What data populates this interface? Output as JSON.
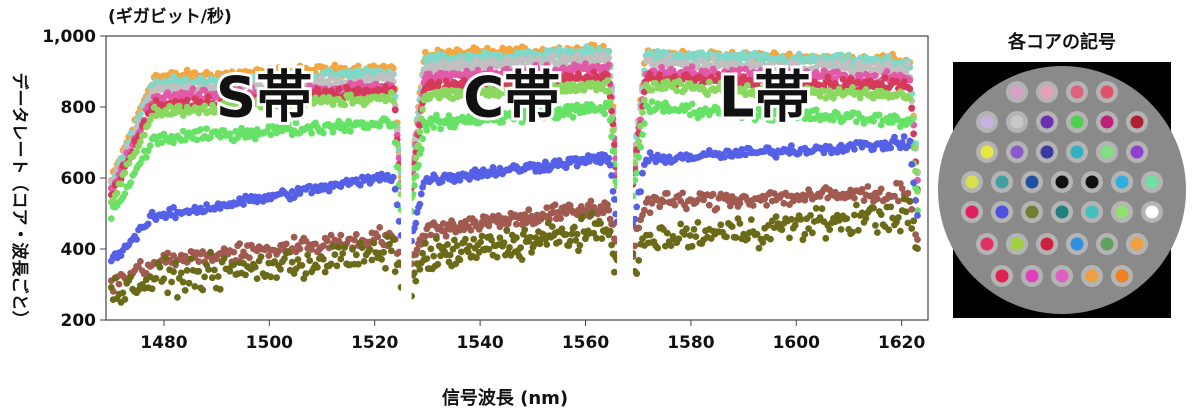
{
  "chart_data": {
    "type": "scatter",
    "unit_label": "(ギガビット/秒)",
    "ylabel": "データレート（コア・波長ごと）",
    "xlabel": "信号波長 (nm)",
    "xlim": [
      1469,
      1625
    ],
    "ylim": [
      200,
      1000
    ],
    "x_ticks": [
      1480,
      1500,
      1520,
      1540,
      1560,
      1580,
      1600,
      1620
    ],
    "y_ticks": [
      200,
      400,
      600,
      800,
      1000
    ],
    "y_tick_labels": [
      "200",
      "400",
      "600",
      "800",
      "1,000"
    ],
    "gaps": [
      [
        1525,
        1527
      ],
      [
        1566,
        1569
      ]
    ],
    "bands": [
      {
        "label": "S帯",
        "x": 1499,
        "y": 830
      },
      {
        "label": "C帯",
        "x": 1546,
        "y": 830
      },
      {
        "label": "L帯",
        "x": 1594,
        "y": 830
      }
    ],
    "series": [
      {
        "color": "#f4a640",
        "bands": [
          [
            880,
            910
          ],
          [
            945,
            960
          ],
          [
            950,
            930
          ]
        ],
        "spread": 22
      },
      {
        "color": "#7fd8c8",
        "bands": [
          [
            860,
            900
          ],
          [
            930,
            955
          ],
          [
            945,
            925
          ]
        ],
        "spread": 22
      },
      {
        "color": "#c0c0c0",
        "bands": [
          [
            840,
            880
          ],
          [
            910,
            935
          ],
          [
            925,
            905
          ]
        ],
        "spread": 24
      },
      {
        "color": "#e05aa8",
        "bands": [
          [
            820,
            860
          ],
          [
            880,
            910
          ],
          [
            900,
            880
          ]
        ],
        "spread": 24
      },
      {
        "color": "#d63a5a",
        "bands": [
          [
            800,
            845
          ],
          [
            855,
            885
          ],
          [
            880,
            860
          ]
        ],
        "spread": 24
      },
      {
        "color": "#8bd860",
        "bands": [
          [
            780,
            830
          ],
          [
            830,
            860
          ],
          [
            860,
            830
          ]
        ],
        "spread": 24
      },
      {
        "color": "#66e266",
        "bands": [
          [
            700,
            760
          ],
          [
            750,
            800
          ],
          [
            800,
            760
          ]
        ],
        "spread": 26
      },
      {
        "color": "#5560e6",
        "bands": [
          [
            470,
            610
          ],
          [
            590,
            660
          ],
          [
            650,
            700
          ]
        ],
        "spread": 22
      },
      {
        "color": "#a05a50",
        "bands": [
          [
            350,
            440
          ],
          [
            450,
            520
          ],
          [
            530,
            560
          ]
        ],
        "spread": 38
      },
      {
        "color": "#6b6a18",
        "bands": [
          [
            300,
            390
          ],
          [
            370,
            460
          ],
          [
            420,
            500
          ]
        ],
        "spread": 65
      }
    ],
    "legend": {
      "title": "各コアの記号",
      "cores": [
        {
          "color": "#d9a0c8"
        },
        {
          "color": "#e8a0b8"
        },
        {
          "color": "#e06080"
        },
        {
          "color": "#e0506a"
        },
        {
          "color": "#c8b0e0"
        },
        {
          "color": "#c8c8c8"
        },
        {
          "color": "#6a30b0"
        },
        {
          "color": "#50d050"
        },
        {
          "color": "#c0207a"
        },
        {
          "color": "#b02030"
        },
        {
          "color": "#e8e840"
        },
        {
          "color": "#8a58c8"
        },
        {
          "color": "#3a3aa0"
        },
        {
          "color": "#30b0c0"
        },
        {
          "color": "#80e080"
        },
        {
          "color": "#9040d0"
        },
        {
          "color": "#d8e050"
        },
        {
          "color": "#40a0a0"
        },
        {
          "color": "#2050a0"
        },
        {
          "color": "#101010"
        },
        {
          "color": "#101010"
        },
        {
          "color": "#30b0e0"
        },
        {
          "color": "#70e0a0"
        },
        {
          "color": "#e02060"
        },
        {
          "color": "#5050e0"
        },
        {
          "color": "#708030"
        },
        {
          "color": "#208080"
        },
        {
          "color": "#40c0c0"
        },
        {
          "color": "#90e070"
        },
        {
          "color": "#ffffff"
        },
        {
          "color": "#e03060"
        },
        {
          "color": "#a0d040"
        },
        {
          "color": "#d02040"
        },
        {
          "color": "#3090e0"
        },
        {
          "color": "#60a060"
        },
        {
          "color": "#f0a040"
        },
        {
          "color": "#e02050"
        },
        {
          "color": "#e040c0"
        },
        {
          "color": "#e060c0"
        },
        {
          "color": "#f0a040"
        },
        {
          "color": "#f08020"
        }
      ]
    }
  }
}
